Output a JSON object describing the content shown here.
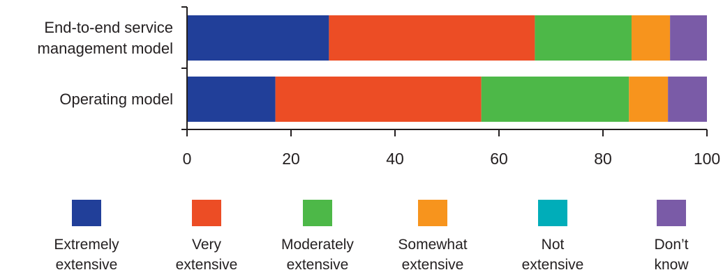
{
  "chart_data": {
    "type": "bar",
    "orientation": "horizontal",
    "stacked": true,
    "title": "",
    "xlabel": "",
    "ylabel": "",
    "xlim": [
      0,
      100
    ],
    "x_ticks": [
      "0",
      "20",
      "40",
      "60",
      "80",
      "100"
    ],
    "categories": [
      [
        "End-to-end service",
        "management model"
      ],
      [
        "Operating model"
      ]
    ],
    "series": [
      {
        "name": "Extremely extensive",
        "label_lines": [
          "Extremely",
          "extensive"
        ],
        "color": "#213f99",
        "values": [
          27.3,
          17.0
        ]
      },
      {
        "name": "Very extensive",
        "label_lines": [
          "Very",
          "extensive"
        ],
        "color": "#ec4d25",
        "values": [
          39.6,
          39.6
        ]
      },
      {
        "name": "Moderately extensive",
        "label_lines": [
          "Moderately",
          "extensive"
        ],
        "color": "#4db848",
        "values": [
          18.6,
          28.4
        ]
      },
      {
        "name": "Somewhat extensive",
        "label_lines": [
          "Somewhat",
          "extensive"
        ],
        "color": "#f7941d",
        "values": [
          7.4,
          7.5
        ]
      },
      {
        "name": "Not extensive",
        "label_lines": [
          "Not",
          "extensive"
        ],
        "color": "#00adb9",
        "values": [
          0,
          0
        ]
      },
      {
        "name": "Don’t know",
        "label_lines": [
          "Don’t",
          "know"
        ],
        "color": "#7a5ba7",
        "values": [
          7.1,
          7.5
        ]
      }
    ],
    "grid": false,
    "legend_position": "bottom"
  }
}
